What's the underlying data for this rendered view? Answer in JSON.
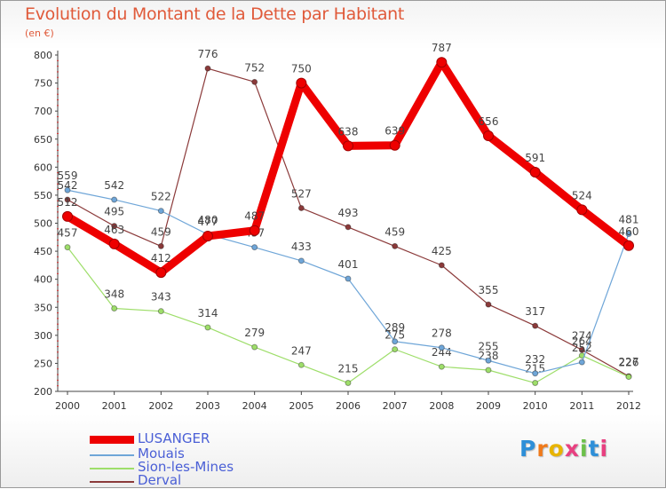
{
  "title": "Evolution du Montant de la Dette par Habitant",
  "unit": "(en €)",
  "logo": "Proxiti",
  "chart_data": {
    "type": "line",
    "categories": [
      "2000",
      "2001",
      "2002",
      "2003",
      "2004",
      "2005",
      "2006",
      "2007",
      "2008",
      "2009",
      "2010",
      "2011",
      "2012"
    ],
    "ylim": [
      200,
      800
    ],
    "yticks": [
      200,
      250,
      300,
      350,
      400,
      450,
      500,
      550,
      600,
      650,
      700,
      750,
      800
    ],
    "grid": false,
    "legend_position": "bottom-left",
    "series": [
      {
        "name": "LUSANGER",
        "color": "#ee0000",
        "values": [
          512,
          463,
          412,
          477,
          487,
          750,
          638,
          639,
          787,
          656,
          591,
          524,
          460
        ]
      },
      {
        "name": "Mouais",
        "color": "#6fa6d8",
        "values": [
          559,
          542,
          522,
          480,
          457,
          433,
          401,
          289,
          278,
          255,
          232,
          252,
          481
        ]
      },
      {
        "name": "Sion-les-Mines",
        "color": "#9ede6a",
        "values": [
          457,
          348,
          343,
          314,
          279,
          247,
          215,
          275,
          244,
          238,
          215,
          264,
          226
        ]
      },
      {
        "name": "Derval",
        "color": "#8b3a3a",
        "values": [
          542,
          495,
          459,
          776,
          752,
          527,
          493,
          459,
          425,
          355,
          317,
          274,
          227
        ]
      }
    ]
  }
}
